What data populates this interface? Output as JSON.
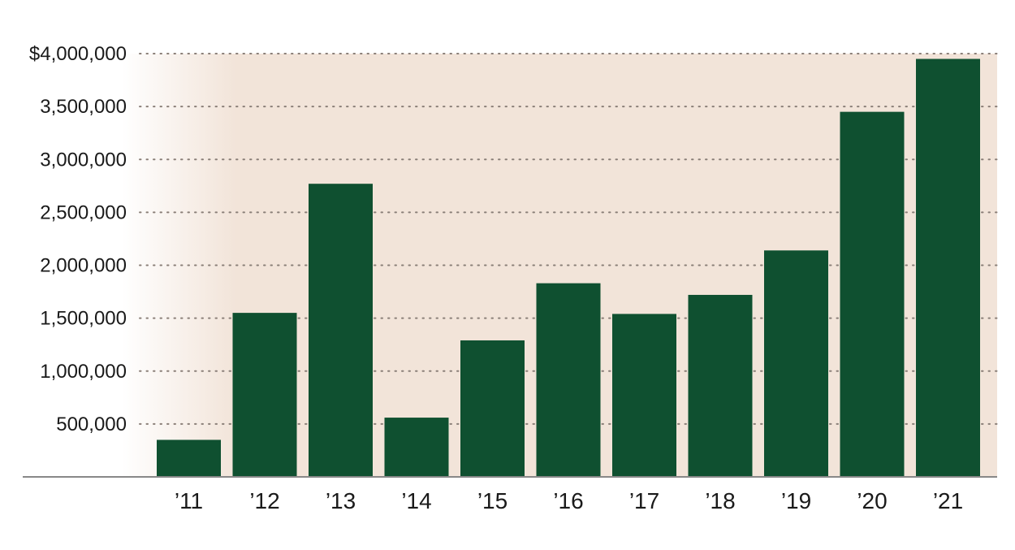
{
  "chart_data": {
    "type": "bar",
    "categories": [
      "’11",
      "’12",
      "’13",
      "’14",
      "’15",
      "’16",
      "’17",
      "’18",
      "’19",
      "’20",
      "’21"
    ],
    "values": [
      350000,
      1550000,
      2770000,
      560000,
      1290000,
      1830000,
      1540000,
      1720000,
      2140000,
      3450000,
      3950000
    ],
    "ylim": [
      0,
      4000000
    ],
    "yticks": [
      500000,
      1000000,
      1500000,
      2000000,
      2500000,
      3000000,
      3500000,
      4000000
    ],
    "ytick_labels": [
      "500,000",
      "1,000,000",
      "1,500,000",
      "2,000,000",
      "2,500,000",
      "3,000,000",
      "3,500,000",
      "$4,000,000"
    ],
    "title": "",
    "xlabel": "",
    "ylabel": "",
    "grid": "horizontal dotted",
    "colors": {
      "bar": "#0f5030",
      "plot_background": "#f2e4d9",
      "gridline": "#8a7f78",
      "axis": "#888888"
    }
  }
}
